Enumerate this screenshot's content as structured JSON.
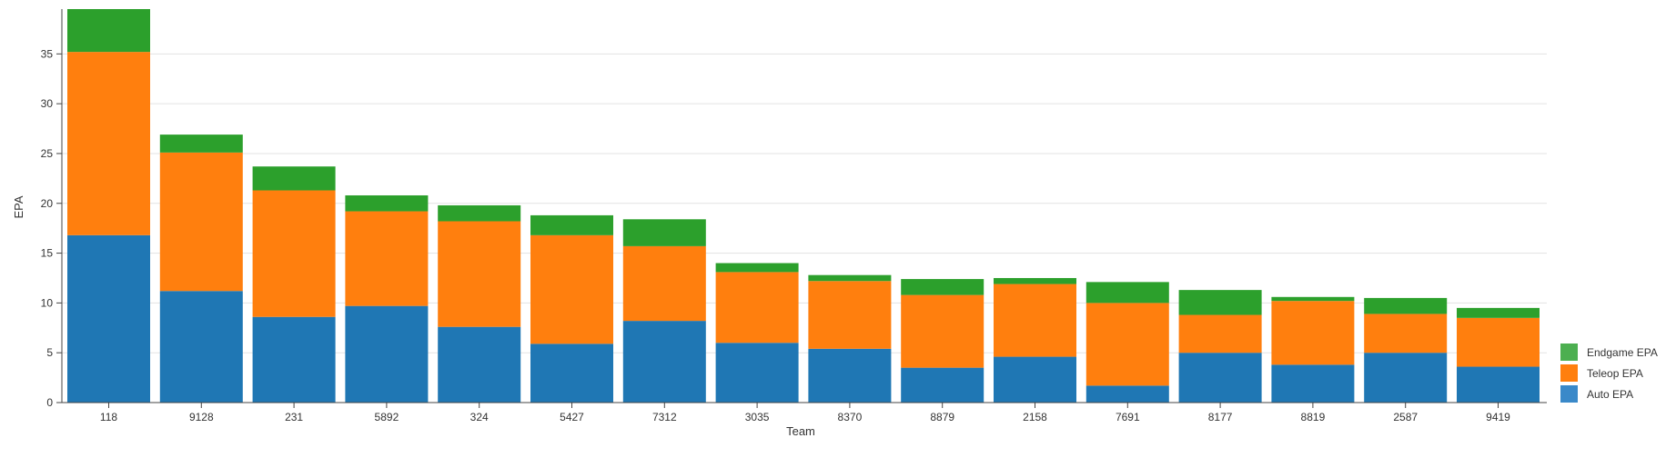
{
  "chart_data": {
    "type": "bar",
    "stacked": true,
    "xlabel": "Team",
    "ylabel": "EPA",
    "ylim": [
      0,
      39.5
    ],
    "yticks": [
      0,
      5,
      10,
      15,
      20,
      25,
      30,
      35
    ],
    "grid": "horizontal",
    "legend_position": "bottom-right",
    "categories": [
      "118",
      "9128",
      "231",
      "5892",
      "324",
      "5427",
      "7312",
      "3035",
      "8370",
      "8879",
      "2158",
      "7691",
      "8177",
      "8819",
      "2587",
      "9419"
    ],
    "series": [
      {
        "name": "Auto EPA",
        "color": "#1f77b4",
        "values": [
          16.8,
          11.2,
          8.6,
          9.7,
          7.6,
          5.9,
          8.2,
          6.0,
          5.4,
          3.5,
          4.6,
          1.7,
          5.0,
          3.8,
          5.0,
          3.6
        ]
      },
      {
        "name": "Teleop EPA",
        "color": "#ff7f0e",
        "values": [
          18.4,
          13.9,
          12.7,
          9.5,
          10.6,
          10.9,
          7.5,
          7.1,
          6.8,
          7.3,
          7.3,
          8.3,
          3.8,
          6.4,
          3.9,
          4.9
        ]
      },
      {
        "name": "Endgame EPA",
        "color": "#2ca02c",
        "values": [
          4.3,
          1.8,
          2.4,
          1.6,
          1.6,
          2.0,
          2.7,
          0.9,
          0.6,
          1.6,
          0.6,
          2.1,
          2.5,
          0.4,
          1.6,
          1.0
        ]
      }
    ]
  },
  "legend_order": [
    "Endgame EPA",
    "Teleop EPA",
    "Auto EPA"
  ]
}
